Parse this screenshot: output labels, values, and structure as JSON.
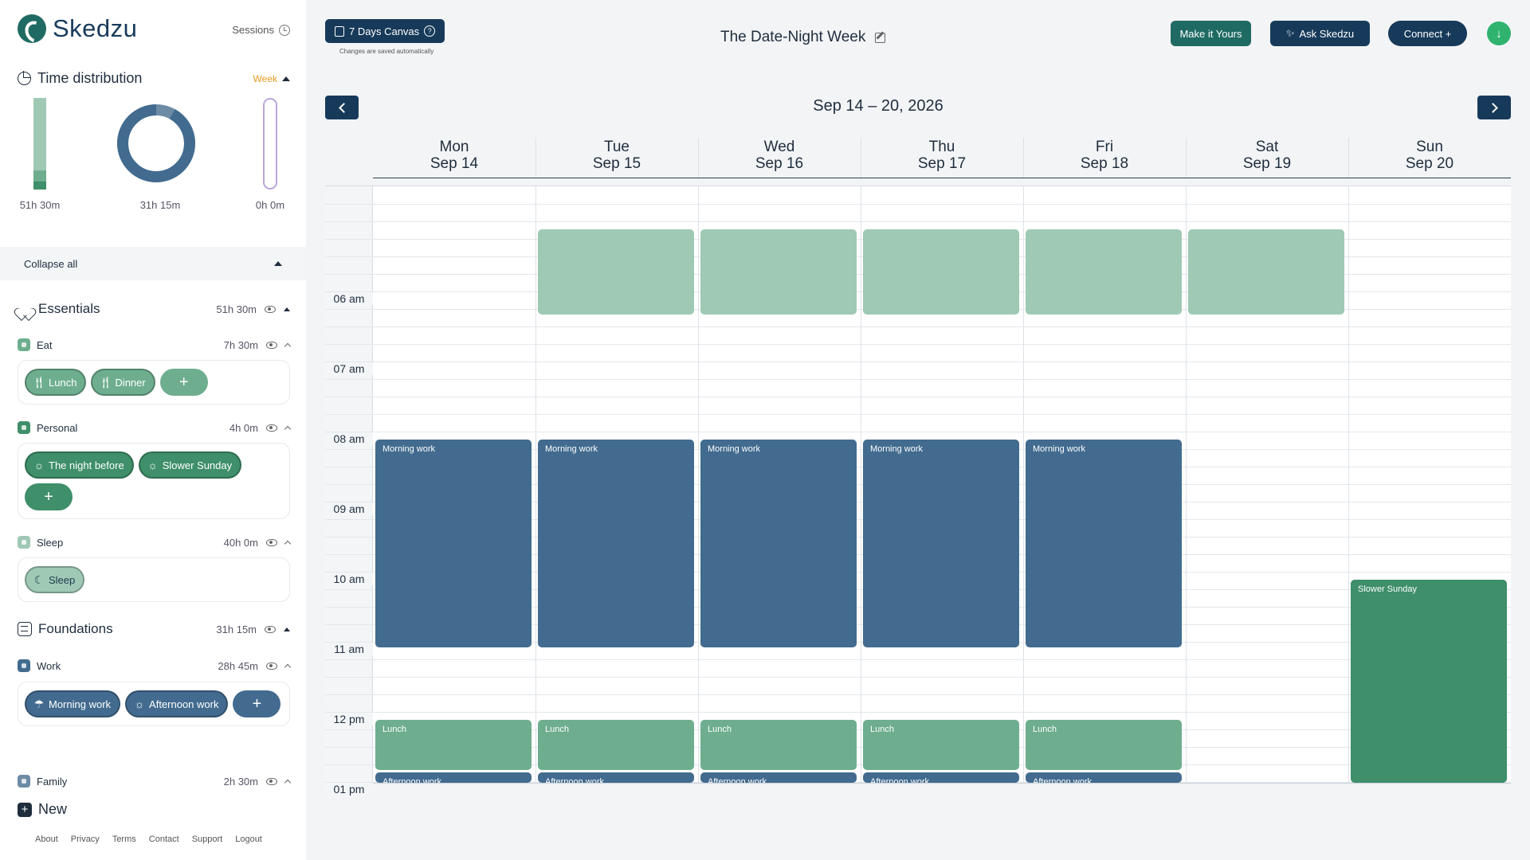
{
  "app": {
    "name": "Skedzu",
    "sessions_label": "Sessions"
  },
  "time_distribution": {
    "title": "Time distribution",
    "period": "Week",
    "essentials_total": "51h 30m",
    "foundations_total": "31h 15m",
    "other_total": "0h 0m",
    "foundations_donut_fraction": 0.92
  },
  "collapse_label": "Collapse all",
  "sections": {
    "essentials": {
      "title": "Essentials",
      "total": "51h 30m"
    },
    "foundations": {
      "title": "Foundations",
      "total": "31h 15m"
    }
  },
  "categories": {
    "eat": {
      "name": "Eat",
      "total": "7h 30m",
      "color": "#6eae8f",
      "chips": [
        "Lunch",
        "Dinner"
      ]
    },
    "personal": {
      "name": "Personal",
      "total": "4h 0m",
      "color": "#3e8f6a",
      "chips": [
        "The night before",
        "Slower Sunday"
      ]
    },
    "sleep": {
      "name": "Sleep",
      "total": "40h 0m",
      "color": "#9fc9b5",
      "chips": [
        "Sleep"
      ]
    },
    "work": {
      "name": "Work",
      "total": "28h 45m",
      "color": "#426b8f",
      "chips": [
        "Morning work",
        "Afternoon work"
      ]
    },
    "family": {
      "name": "Family",
      "total": "2h 30m",
      "color": "#6e8ba6"
    }
  },
  "add_symbol": "+",
  "new_label": "New",
  "footer": [
    "About",
    "Privacy",
    "Terms",
    "Contact",
    "Support",
    "Logout"
  ],
  "topbar": {
    "canvas_label": "7 Days Canvas",
    "saved_note": "Changes are saved automatically",
    "title": "The Date-Night Week",
    "make_it_yours": "Make it Yours",
    "ask_skedzu": "Ask Skedzu",
    "connect": "Connect +",
    "download_icon": "download-icon"
  },
  "calendar": {
    "range": "Sep 14 – 20, 2026",
    "days": [
      {
        "dow": "Mon",
        "date": "Sep 14"
      },
      {
        "dow": "Tue",
        "date": "Sep 15"
      },
      {
        "dow": "Wed",
        "date": "Sep 16"
      },
      {
        "dow": "Thu",
        "date": "Sep 17"
      },
      {
        "dow": "Fri",
        "date": "Sep 18"
      },
      {
        "dow": "Sat",
        "date": "Sep 19"
      },
      {
        "dow": "Sun",
        "date": "Sep 20"
      }
    ],
    "time_labels": [
      "06 am",
      "07 am",
      "08 am",
      "09 am",
      "10 am",
      "11 am",
      "12 pm",
      "01 pm"
    ],
    "events": [
      {
        "day": 1,
        "start": 5.0,
        "end": 6.25,
        "title": "",
        "color": "#9fc9b5"
      },
      {
        "day": 2,
        "start": 5.0,
        "end": 6.25,
        "title": "",
        "color": "#9fc9b5"
      },
      {
        "day": 3,
        "start": 5.0,
        "end": 6.25,
        "title": "",
        "color": "#9fc9b5"
      },
      {
        "day": 4,
        "start": 5.0,
        "end": 6.25,
        "title": "",
        "color": "#9fc9b5"
      },
      {
        "day": 5,
        "start": 5.0,
        "end": 6.25,
        "title": "",
        "color": "#9fc9b5"
      },
      {
        "day": 0,
        "start": 8.0,
        "end": 11.0,
        "title": "Morning work",
        "color": "#426b8f"
      },
      {
        "day": 1,
        "start": 8.0,
        "end": 11.0,
        "title": "Morning work",
        "color": "#426b8f"
      },
      {
        "day": 2,
        "start": 8.0,
        "end": 11.0,
        "title": "Morning work",
        "color": "#426b8f"
      },
      {
        "day": 3,
        "start": 8.0,
        "end": 11.0,
        "title": "Morning work",
        "color": "#426b8f"
      },
      {
        "day": 4,
        "start": 8.0,
        "end": 11.0,
        "title": "Morning work",
        "color": "#426b8f"
      },
      {
        "day": 0,
        "start": 12.0,
        "end": 12.75,
        "title": "Lunch",
        "color": "#6eae8f"
      },
      {
        "day": 1,
        "start": 12.0,
        "end": 12.75,
        "title": "Lunch",
        "color": "#6eae8f"
      },
      {
        "day": 2,
        "start": 12.0,
        "end": 12.75,
        "title": "Lunch",
        "color": "#6eae8f"
      },
      {
        "day": 3,
        "start": 12.0,
        "end": 12.75,
        "title": "Lunch",
        "color": "#6eae8f"
      },
      {
        "day": 4,
        "start": 12.0,
        "end": 12.75,
        "title": "Lunch",
        "color": "#6eae8f"
      },
      {
        "day": 0,
        "start": 12.75,
        "end": 14.0,
        "title": "Afternoon work",
        "color": "#426b8f"
      },
      {
        "day": 1,
        "start": 12.75,
        "end": 14.0,
        "title": "Afternoon work",
        "color": "#426b8f"
      },
      {
        "day": 2,
        "start": 12.75,
        "end": 14.0,
        "title": "Afternoon work",
        "color": "#426b8f"
      },
      {
        "day": 3,
        "start": 12.75,
        "end": 14.0,
        "title": "Afternoon work",
        "color": "#426b8f"
      },
      {
        "day": 4,
        "start": 12.75,
        "end": 14.0,
        "title": "Afternoon work",
        "color": "#426b8f"
      },
      {
        "day": 6,
        "start": 10.0,
        "end": 13.0,
        "title": "Slower Sunday",
        "color": "#3e8f6a"
      }
    ]
  }
}
